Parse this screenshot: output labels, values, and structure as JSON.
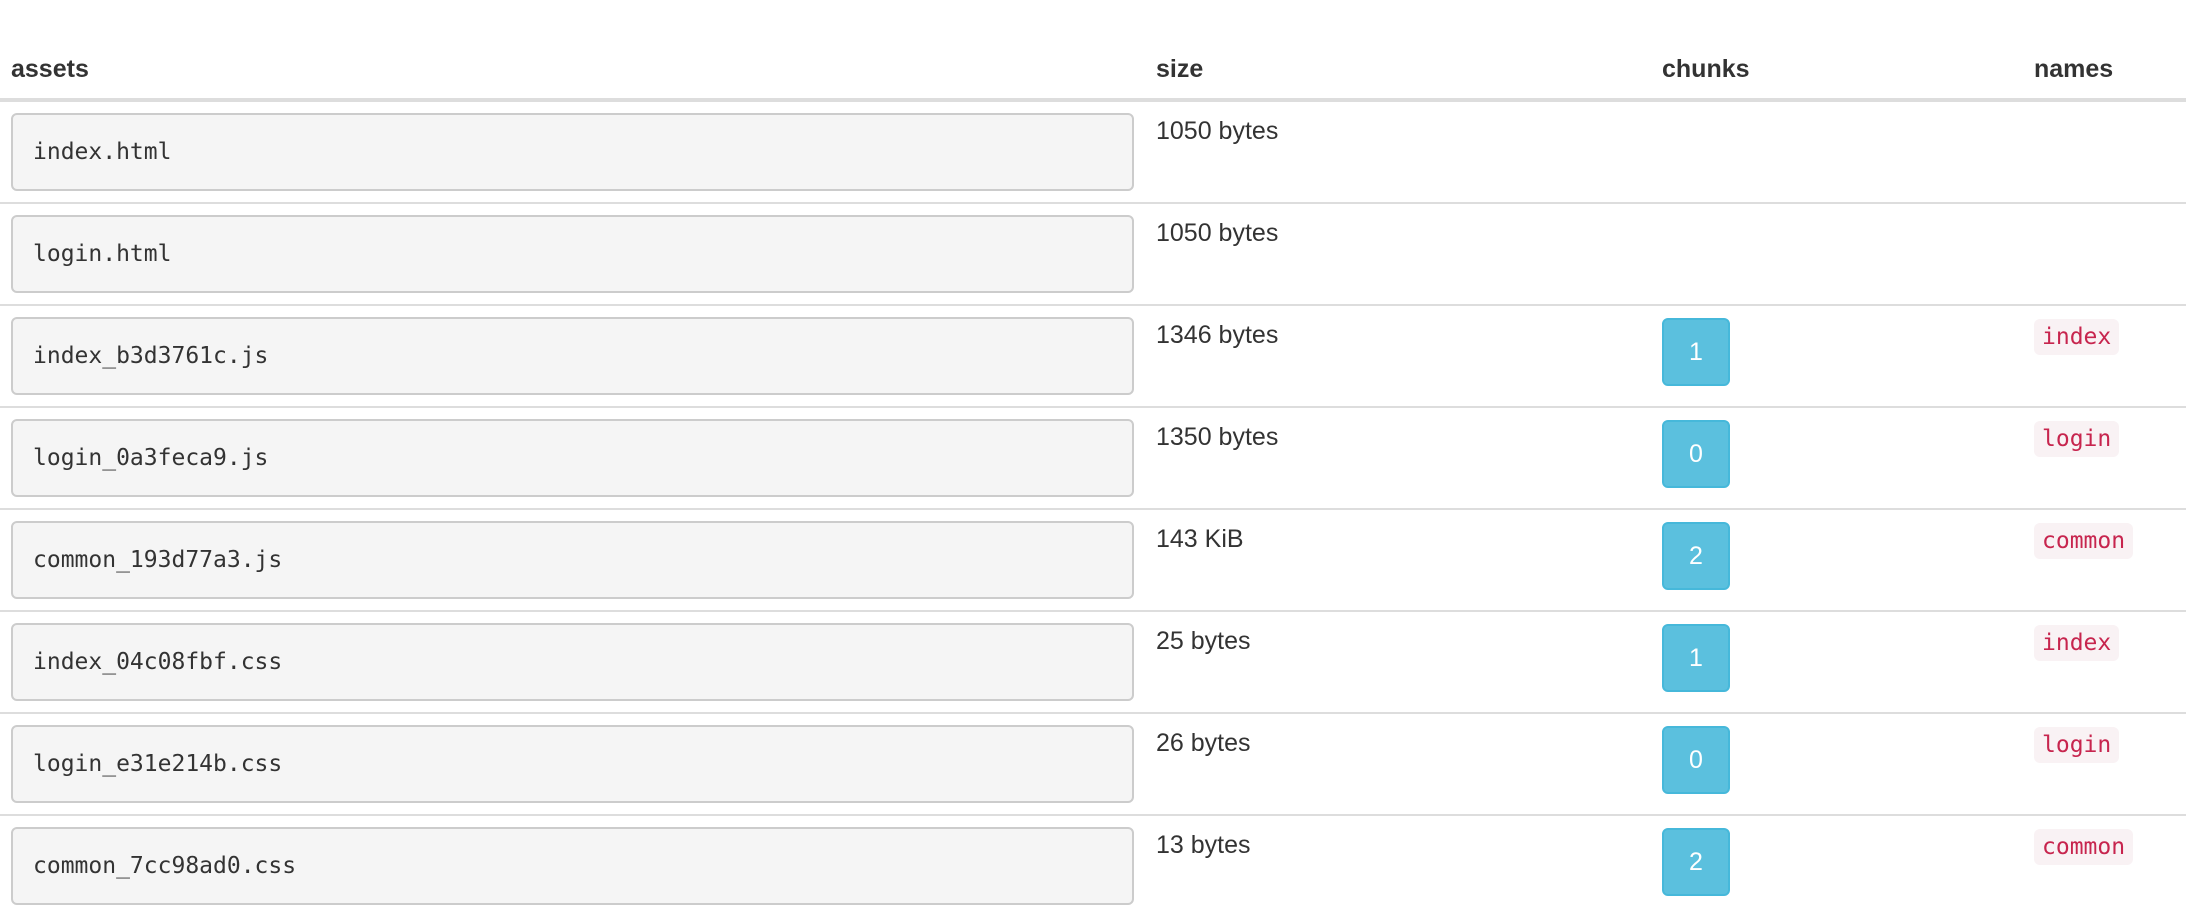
{
  "headers": {
    "assets": "assets",
    "size": "size",
    "chunks": "chunks",
    "names": "names"
  },
  "colors": {
    "chunk_badge": "#5bc0de",
    "name_text": "#c7254e",
    "name_bg": "#f9f2f4",
    "asset_bg": "#f5f5f5"
  },
  "rows": [
    {
      "asset": "index.html",
      "size": "1050 bytes",
      "chunk": null,
      "name": null
    },
    {
      "asset": "login.html",
      "size": "1050 bytes",
      "chunk": null,
      "name": null
    },
    {
      "asset": "index_b3d3761c.js",
      "size": "1346 bytes",
      "chunk": "1",
      "name": "index"
    },
    {
      "asset": "login_0a3feca9.js",
      "size": "1350 bytes",
      "chunk": "0",
      "name": "login"
    },
    {
      "asset": "common_193d77a3.js",
      "size": "143 KiB",
      "chunk": "2",
      "name": "common"
    },
    {
      "asset": "index_04c08fbf.css",
      "size": "25 bytes",
      "chunk": "1",
      "name": "index"
    },
    {
      "asset": "login_e31e214b.css",
      "size": "26 bytes",
      "chunk": "0",
      "name": "login"
    },
    {
      "asset": "common_7cc98ad0.css",
      "size": "13 bytes",
      "chunk": "2",
      "name": "common"
    }
  ]
}
